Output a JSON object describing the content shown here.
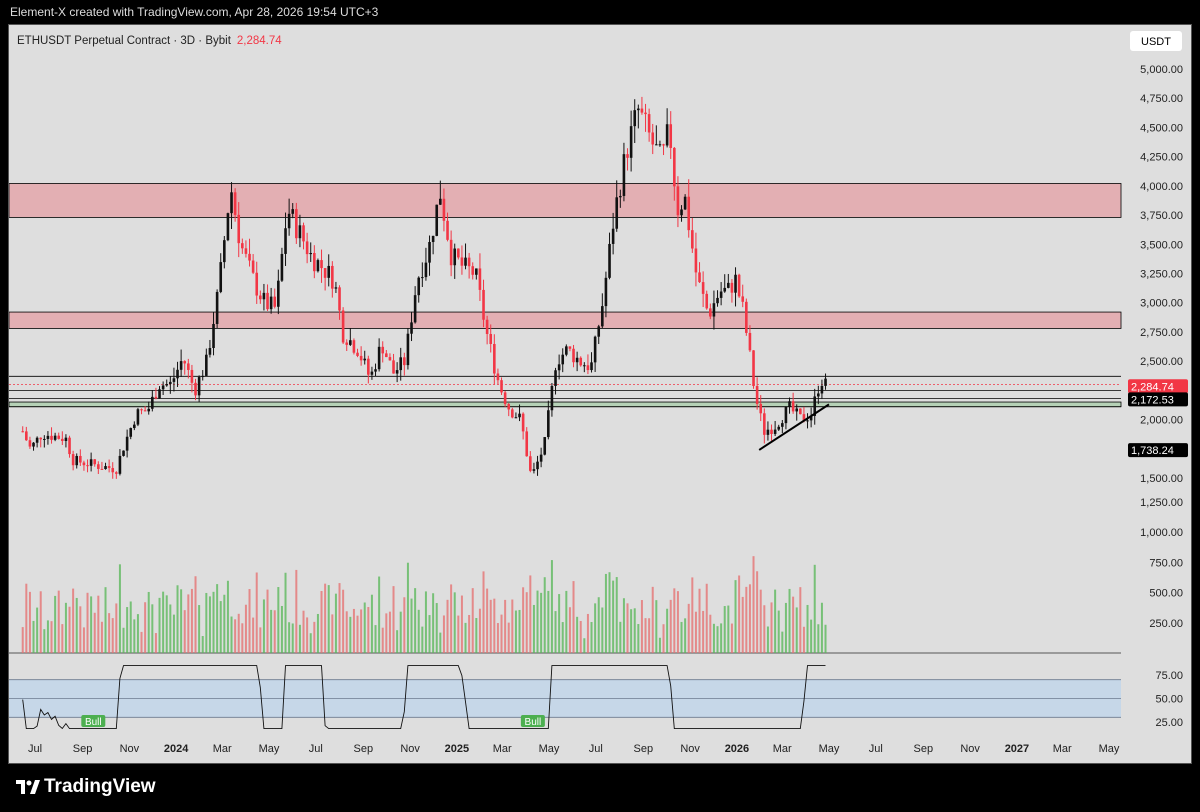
{
  "header": {
    "attribution": "Element-X created with TradingView.com, Apr 28, 2026 19:54 UTC+3"
  },
  "footer": {
    "brand": "TradingView"
  },
  "chart_data": {
    "type": "candlestick",
    "symbol_label": "ETHUSDT Perpetual Contract · 3D · Bybit",
    "last_price": "2,284.74",
    "currency_button": "USDT",
    "x_tick_labels": [
      "Jul",
      "Sep",
      "Nov",
      "2024",
      "Mar",
      "May",
      "Jul",
      "Sep",
      "Nov",
      "2025",
      "Mar",
      "May",
      "Jul",
      "Sep",
      "Nov",
      "2026",
      "Mar",
      "May",
      "Jul",
      "Sep",
      "Nov",
      "2027",
      "Mar",
      "May"
    ],
    "x_tick_dates": [
      "2023-07",
      "2023-09",
      "2023-11",
      "2024-01",
      "2024-03",
      "2024-05",
      "2024-07",
      "2024-09",
      "2024-11",
      "2025-01",
      "2025-03",
      "2025-05",
      "2025-07",
      "2025-09",
      "2025-11",
      "2026-01",
      "2026-03",
      "2026-05",
      "2026-07",
      "2026-09",
      "2026-11",
      "2027-01",
      "2027-03",
      "2027-05"
    ],
    "price_axis": {
      "min": 1300,
      "max": 5100,
      "tick_labels": [
        "5,000.00",
        "4,750.00",
        "4,500.00",
        "4,250.00",
        "4,000.00",
        "3,750.00",
        "3,500.00",
        "3,250.00",
        "3,000.00",
        "2,750.00",
        "2,500.00",
        "2,250.00",
        "2,000.00",
        "1,750.00",
        "1,500.00"
      ],
      "ticks": [
        5000,
        4750,
        4500,
        4250,
        4000,
        3750,
        3500,
        3250,
        3000,
        2750,
        2500,
        2250,
        2000,
        1750,
        1500
      ]
    },
    "price_labels": [
      {
        "text": "2,284.74",
        "value": 2284.74,
        "color": "#f23645"
      },
      {
        "text": "2,172.53",
        "value": 2172.53,
        "color": "#000000"
      },
      {
        "text": "1,738.24",
        "value": 1738.24,
        "color": "#000000"
      }
    ],
    "series_points": [
      [
        "2023-06-15",
        1900
      ],
      [
        "2023-06-25",
        1750
      ],
      [
        "2023-07-10",
        1880
      ],
      [
        "2023-07-25",
        1860
      ],
      [
        "2023-08-10",
        1840
      ],
      [
        "2023-08-20",
        1650
      ],
      [
        "2023-09-05",
        1630
      ],
      [
        "2023-09-25",
        1600
      ],
      [
        "2023-10-15",
        1580
      ],
      [
        "2023-10-25",
        1780
      ],
      [
        "2023-11-10",
        2050
      ],
      [
        "2023-11-25",
        2080
      ],
      [
        "2023-12-10",
        2300
      ],
      [
        "2023-12-25",
        2300
      ],
      [
        "2024-01-10",
        2530
      ],
      [
        "2024-01-25",
        2250
      ],
      [
        "2024-02-10",
        2500
      ],
      [
        "2024-02-25",
        3100
      ],
      [
        "2024-03-12",
        4000
      ],
      [
        "2024-03-25",
        3500
      ],
      [
        "2024-04-10",
        3200
      ],
      [
        "2024-04-25",
        3000
      ],
      [
        "2024-05-10",
        2950
      ],
      [
        "2024-05-25",
        3800
      ],
      [
        "2024-06-10",
        3600
      ],
      [
        "2024-06-25",
        3400
      ],
      [
        "2024-07-10",
        3300
      ],
      [
        "2024-07-25",
        3200
      ],
      [
        "2024-08-05",
        2750
      ],
      [
        "2024-08-25",
        2600
      ],
      [
        "2024-09-10",
        2350
      ],
      [
        "2024-09-25",
        2650
      ],
      [
        "2024-10-10",
        2400
      ],
      [
        "2024-10-25",
        2500
      ],
      [
        "2024-11-10",
        3200
      ],
      [
        "2024-11-25",
        3450
      ],
      [
        "2024-12-10",
        3950
      ],
      [
        "2024-12-25",
        3400
      ],
      [
        "2025-01-10",
        3300
      ],
      [
        "2025-01-25",
        3250
      ],
      [
        "2025-02-10",
        2700
      ],
      [
        "2025-02-25",
        2300
      ],
      [
        "2025-03-10",
        2100
      ],
      [
        "2025-03-25",
        2000
      ],
      [
        "2025-04-08",
        1500
      ],
      [
        "2025-04-25",
        1780
      ],
      [
        "2025-05-10",
        2500
      ],
      [
        "2025-05-25",
        2600
      ],
      [
        "2025-06-10",
        2500
      ],
      [
        "2025-06-25",
        2450
      ],
      [
        "2025-07-10",
        3000
      ],
      [
        "2025-07-25",
        3750
      ],
      [
        "2025-08-10",
        4300
      ],
      [
        "2025-08-25",
        4650
      ],
      [
        "2025-09-10",
        4400
      ],
      [
        "2025-09-25",
        4200
      ],
      [
        "2025-10-05",
        4500
      ],
      [
        "2025-10-15",
        3800
      ],
      [
        "2025-10-25",
        3900
      ],
      [
        "2025-11-10",
        3200
      ],
      [
        "2025-11-25",
        2900
      ],
      [
        "2025-12-10",
        3100
      ],
      [
        "2025-12-20",
        3100
      ],
      [
        "2025-12-30",
        3200
      ],
      [
        "2026-01-10",
        2900
      ],
      [
        "2026-01-25",
        2200
      ],
      [
        "2026-02-05",
        1900
      ],
      [
        "2026-02-20",
        1950
      ],
      [
        "2026-03-10",
        2100
      ],
      [
        "2026-03-25",
        2000
      ],
      [
        "2026-04-08",
        2050
      ],
      [
        "2026-04-20",
        2350
      ],
      [
        "2026-04-28",
        2284.74
      ]
    ],
    "zones": [
      {
        "from": 3730,
        "to": 4020,
        "color": "#f23645"
      },
      {
        "from": 2780,
        "to": 2920,
        "color": "#f23645"
      },
      {
        "from": 2110,
        "to": 2150,
        "color": "#4caf50"
      }
    ],
    "horizontal_lines": [
      2300,
      2250,
      2180,
      2110,
      2370
    ],
    "trendline": {
      "from": [
        "2026-01-30",
        1740
      ],
      "to": [
        "2026-05-01",
        2130
      ]
    },
    "volume_axis": {
      "max": 1400,
      "tick_labels": [
        "1,250.00",
        "1,000.00",
        "750.00",
        "500.00",
        "250.00"
      ],
      "ticks": [
        1250,
        1000,
        750,
        500,
        250
      ]
    },
    "rsi": {
      "tick_labels": [
        "75.00",
        "50.00",
        "25.00"
      ],
      "ticks": [
        75,
        50,
        25
      ],
      "band_upper": 70,
      "band_lower": 30,
      "mid": 50,
      "divergence_labels": [
        "Bull",
        "Bull"
      ],
      "divergence_dates": [
        "2023-09-15",
        "2025-04-10"
      ]
    }
  }
}
